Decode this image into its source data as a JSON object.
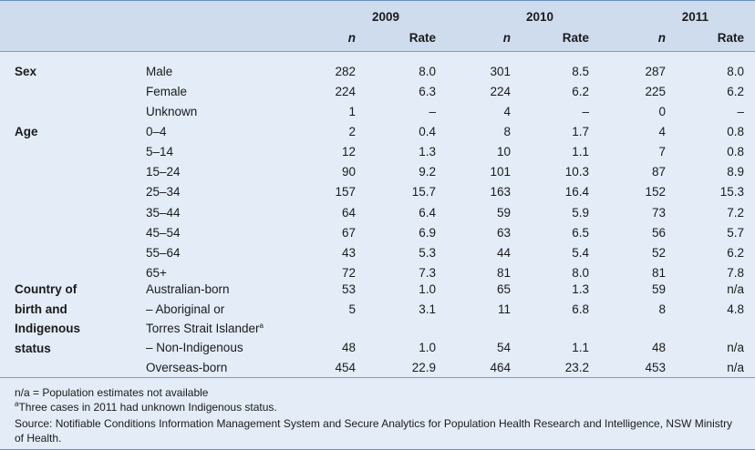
{
  "years": [
    "2009",
    "2010",
    "2011"
  ],
  "col_n": "n",
  "col_rate": "Rate",
  "groups": [
    {
      "label": "Sex"
    },
    {
      "label": "Age"
    },
    {
      "label_lines": [
        "Country of",
        "birth and",
        "Indigenous",
        "status"
      ]
    }
  ],
  "rows": [
    {
      "label": "Male",
      "v": [
        "282",
        "8.0",
        "301",
        "8.5",
        "287",
        "8.0"
      ]
    },
    {
      "label": "Female",
      "v": [
        "224",
        "6.3",
        "224",
        "6.2",
        "225",
        "6.2"
      ]
    },
    {
      "label": "Unknown",
      "v": [
        "1",
        "–",
        "4",
        "–",
        "0",
        "–"
      ]
    },
    {
      "label": "0–4",
      "v": [
        "2",
        "0.4",
        "8",
        "1.7",
        "4",
        "0.8"
      ]
    },
    {
      "label": "5–14",
      "v": [
        "12",
        "1.3",
        "10",
        "1.1",
        "7",
        "0.8"
      ]
    },
    {
      "label": "15–24",
      "v": [
        "90",
        "9.2",
        "101",
        "10.3",
        "87",
        "8.9"
      ]
    },
    {
      "label": "25–34",
      "v": [
        "157",
        "15.7",
        "163",
        "16.4",
        "152",
        "15.3"
      ]
    },
    {
      "label": "35–44",
      "v": [
        "64",
        "6.4",
        "59",
        "5.9",
        "73",
        "7.2"
      ]
    },
    {
      "label": "45–54",
      "v": [
        "67",
        "6.9",
        "63",
        "6.5",
        "56",
        "5.7"
      ]
    },
    {
      "label": "55–64",
      "v": [
        "43",
        "5.3",
        "44",
        "5.4",
        "52",
        "6.2"
      ]
    },
    {
      "label": "65+",
      "v": [
        "72",
        "7.3",
        "81",
        "8.0",
        "81",
        "7.8"
      ]
    },
    {
      "label": "Australian-born",
      "v": [
        "53",
        "1.0",
        "65",
        "1.3",
        "59",
        "n/a"
      ]
    },
    {
      "label": "– Aboriginal or",
      "label2": "Torres Strait Islander",
      "sup": "a",
      "v": [
        "5",
        "3.1",
        "11",
        "6.8",
        "8",
        "4.8"
      ]
    },
    {
      "label": "– Non-Indigenous",
      "v": [
        "48",
        "1.0",
        "54",
        "1.1",
        "48",
        "n/a"
      ]
    },
    {
      "label": "Overseas-born",
      "v": [
        "454",
        "22.9",
        "464",
        "23.2",
        "453",
        "n/a"
      ]
    }
  ],
  "notes": {
    "na": "n/a = Population estimates not available",
    "footnote_mark": "a",
    "footnote": "Three cases in 2011 had unknown Indigenous status.",
    "source_line1": "Source: Notifiable Conditions Information Management System and Secure Analytics for Population Health Research and Intelligence, NSW Ministry",
    "source_line2": "of Health."
  }
}
